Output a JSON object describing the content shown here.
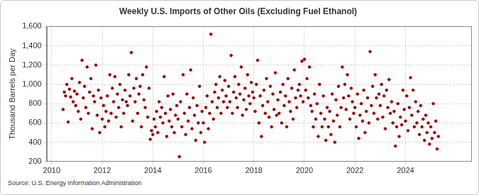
{
  "chart_data": {
    "type": "scatter",
    "title": "Weekly U.S. Imports of Other Oils (Excluding Fuel Ethanol)",
    "y_label": "Thousand Barrels per Day",
    "source": "Source: U.S. Energy Information Administration",
    "color": "#990000",
    "marker": "circle",
    "grid": true,
    "xlim": [
      2009.8,
      2026.6
    ],
    "xticks": [
      2010,
      2012,
      2014,
      2016,
      2018,
      2020,
      2022,
      2024
    ],
    "ylim": [
      200,
      1600
    ],
    "yticks": [
      200,
      400,
      600,
      800,
      {
        "value": 1000,
        "label": "1,000"
      },
      {
        "value": 1200,
        "label": "1,200"
      },
      {
        "value": 1400,
        "label": "1,400"
      },
      {
        "value": 1600,
        "label": "1,600"
      }
    ],
    "x": [
      2010.45,
      2010.5,
      2010.55,
      2010.6,
      2010.65,
      2010.7,
      2010.75,
      2010.8,
      2010.85,
      2010.9,
      2010.95,
      2011,
      2011.05,
      2011.1,
      2011.15,
      2011.2,
      2011.25,
      2011.3,
      2011.35,
      2011.4,
      2011.45,
      2011.5,
      2011.55,
      2011.6,
      2011.65,
      2011.7,
      2011.75,
      2011.8,
      2011.85,
      2011.9,
      2011.95,
      2012,
      2012.05,
      2012.1,
      2012.15,
      2012.2,
      2012.25,
      2012.3,
      2012.35,
      2012.4,
      2012.45,
      2012.5,
      2012.55,
      2012.6,
      2012.65,
      2012.7,
      2012.75,
      2012.8,
      2012.85,
      2012.9,
      2012.95,
      2013,
      2013.05,
      2013.1,
      2013.15,
      2013.2,
      2013.25,
      2013.3,
      2013.35,
      2013.4,
      2013.45,
      2013.5,
      2013.55,
      2013.6,
      2013.65,
      2013.7,
      2013.75,
      2013.8,
      2013.85,
      2013.9,
      2013.95,
      2014,
      2014.05,
      2014.1,
      2014.15,
      2014.2,
      2014.25,
      2014.3,
      2014.35,
      2014.4,
      2014.45,
      2014.5,
      2014.55,
      2014.6,
      2014.65,
      2014.7,
      2014.75,
      2014.8,
      2014.85,
      2014.9,
      2014.95,
      2015,
      2015.05,
      2015.1,
      2015.15,
      2015.2,
      2015.25,
      2015.3,
      2015.35,
      2015.4,
      2015.45,
      2015.5,
      2015.55,
      2015.6,
      2015.65,
      2015.7,
      2015.75,
      2015.8,
      2015.85,
      2015.9,
      2015.95,
      2016,
      2016.05,
      2016.1,
      2016.15,
      2016.2,
      2016.25,
      2016.3,
      2016.35,
      2016.4,
      2016.45,
      2016.5,
      2016.55,
      2016.6,
      2016.65,
      2016.7,
      2016.75,
      2016.8,
      2016.85,
      2016.9,
      2016.95,
      2017,
      2017.05,
      2017.1,
      2017.15,
      2017.2,
      2017.25,
      2017.3,
      2017.35,
      2017.4,
      2017.45,
      2017.5,
      2017.55,
      2017.6,
      2017.65,
      2017.7,
      2017.75,
      2017.8,
      2017.85,
      2017.9,
      2017.95,
      2018,
      2018.05,
      2018.1,
      2018.15,
      2018.2,
      2018.25,
      2018.3,
      2018.35,
      2018.4,
      2018.45,
      2018.5,
      2018.55,
      2018.6,
      2018.65,
      2018.7,
      2018.75,
      2018.8,
      2018.85,
      2018.9,
      2018.95,
      2019,
      2019.05,
      2019.1,
      2019.15,
      2019.2,
      2019.25,
      2019.3,
      2019.35,
      2019.4,
      2019.45,
      2019.5,
      2019.55,
      2019.6,
      2019.65,
      2019.7,
      2019.75,
      2019.8,
      2019.85,
      2019.9,
      2019.95,
      2020,
      2020.05,
      2020.1,
      2020.15,
      2020.2,
      2020.25,
      2020.3,
      2020.35,
      2020.4,
      2020.45,
      2020.5,
      2020.55,
      2020.6,
      2020.65,
      2020.7,
      2020.75,
      2020.8,
      2020.85,
      2020.9,
      2020.95,
      2021,
      2021.05,
      2021.1,
      2021.15,
      2021.2,
      2021.25,
      2021.3,
      2021.35,
      2021.4,
      2021.45,
      2021.5,
      2021.55,
      2021.6,
      2021.65,
      2021.7,
      2021.75,
      2021.8,
      2021.85,
      2021.9,
      2021.95,
      2022,
      2022.05,
      2022.1,
      2022.15,
      2022.2,
      2022.25,
      2022.3,
      2022.35,
      2022.4,
      2022.45,
      2022.5,
      2022.55,
      2022.6,
      2022.65,
      2022.7,
      2022.75,
      2022.8,
      2022.85,
      2022.9,
      2022.95,
      2023,
      2023.05,
      2023.1,
      2023.15,
      2023.2,
      2023.25,
      2023.3,
      2023.35,
      2023.4,
      2023.45,
      2023.5,
      2023.55,
      2023.6,
      2023.65,
      2023.7,
      2023.75,
      2023.8,
      2023.85,
      2023.9,
      2023.95,
      2024,
      2024.05,
      2024.1,
      2024.15,
      2024.2,
      2024.25,
      2024.3,
      2024.35,
      2024.4,
      2024.45,
      2024.5,
      2024.55,
      2024.6,
      2024.65,
      2024.7,
      2024.75,
      2024.8,
      2024.85,
      2024.9,
      2024.95,
      2025,
      2025.05,
      2025.1,
      2025.15,
      2025.2,
      2025.25,
      2025.3
    ],
    "values": [
      740,
      920,
      880,
      1000,
      610,
      950,
      870,
      1060,
      820,
      930,
      780,
      900,
      720,
      1020,
      640,
      1250,
      860,
      980,
      760,
      1180,
      700,
      920,
      1060,
      540,
      880,
      820,
      1200,
      680,
      940,
      500,
      860,
      640,
      780,
      560,
      720,
      880,
      620,
      1100,
      700,
      960,
      820,
      1080,
      660,
      900,
      760,
      1000,
      560,
      840,
      700,
      940,
      820,
      780,
      1100,
      880,
      1330,
      620,
      960,
      820,
      1060,
      700,
      900,
      980,
      560,
      1100,
      840,
      760,
      1180,
      660,
      960,
      430,
      520,
      480,
      640,
      560,
      720,
      500,
      820,
      660,
      760,
      600,
      1080,
      700,
      460,
      880,
      620,
      740,
      560,
      900,
      500,
      680,
      780,
      640,
      250,
      820,
      560,
      1100,
      700,
      480,
      900,
      620,
      760,
      1150,
      540,
      860,
      680,
      420,
      780,
      600,
      980,
      500,
      720,
      600,
      400,
      760,
      880,
      540,
      700,
      1520,
      820,
      640,
      920,
      1000,
      760,
      860,
      1080,
      700,
      940,
      820,
      1040,
      880,
      760,
      980,
      820,
      1300,
      700,
      920,
      1080,
      860,
      760,
      1000,
      900,
      1180,
      680,
      840,
      960,
      740,
      1100,
      880,
      800,
      1020,
      920,
      860,
      720,
      1000,
      1250,
      600,
      880,
      460,
      780,
      940,
      700,
      1060,
      820,
      660,
      980,
      560,
      900,
      740,
      1120,
      680,
      840,
      700,
      920,
      600,
      1000,
      780,
      880,
      560,
      1060,
      820,
      720,
      960,
      640,
      1150,
      860,
      760,
      940,
      1000,
      880,
      1240,
      820,
      1260,
      940,
      1060,
      860,
      1180,
      780,
      720,
      560,
      900,
      640,
      800,
      460,
      1000,
      700,
      560,
      880,
      640,
      420,
      760,
      560,
      720,
      480,
      900,
      620,
      400,
      840,
      680,
      980,
      560,
      760,
      1180,
      860,
      1000,
      740,
      1100,
      880,
      640,
      960,
      820,
      700,
      760,
      560,
      900,
      440,
      680,
      800,
      620,
      940,
      500,
      720,
      860,
      600,
      1340,
      780,
      980,
      700,
      1100,
      860,
      640,
      900,
      780,
      1000,
      660,
      880,
      540,
      940,
      760,
      1050,
      700,
      820,
      600,
      720,
      360,
      560,
      800,
      460,
      660,
      580,
      940,
      740,
      620,
      880,
      520,
      760,
      1070,
      680,
      940,
      560,
      820,
      600,
      720,
      480,
      780,
      560,
      640,
      420,
      680,
      500,
      600,
      380,
      560,
      440,
      800,
      500,
      620,
      330,
      460
    ]
  }
}
